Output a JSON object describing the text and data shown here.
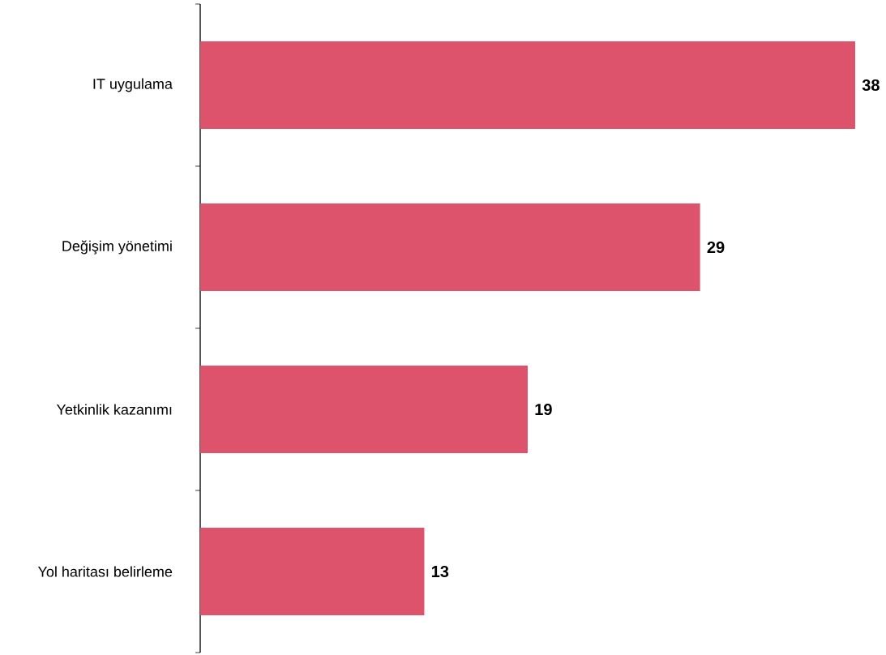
{
  "chart_data": {
    "type": "bar",
    "orientation": "horizontal",
    "categories": [
      "IT uygulama",
      "Değişim yönetimi",
      "Yetkinlik kazanımı",
      "Yol haritası belirleme"
    ],
    "values": [
      38,
      29,
      19,
      13
    ],
    "color": "#dc536b",
    "xlim": [
      0,
      38
    ],
    "data_labels": true,
    "tick_labels": "y"
  }
}
